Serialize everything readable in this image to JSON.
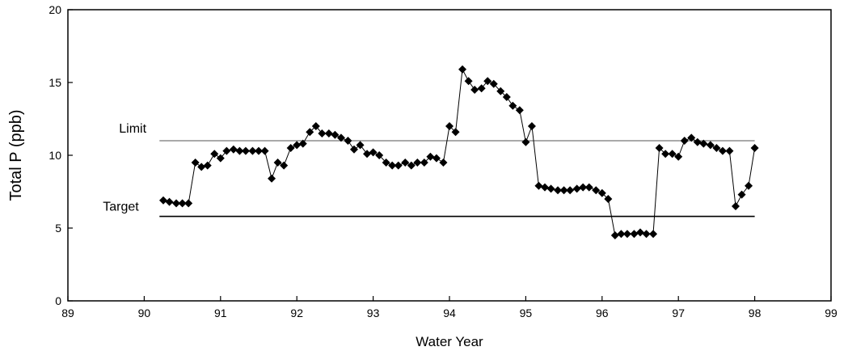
{
  "chart_data": {
    "type": "scatter",
    "title": "",
    "xlabel": "Water Year",
    "ylabel": "Total P (ppb)",
    "xlim": [
      89,
      99
    ],
    "ylim": [
      0,
      20
    ],
    "xticks": [
      "89",
      "90",
      "91",
      "92",
      "93",
      "94",
      "95",
      "96",
      "97",
      "98",
      "99"
    ],
    "yticks": [
      "0",
      "5",
      "10",
      "15",
      "20"
    ],
    "grid": false,
    "colors": {
      "series": "#000000",
      "limit": "#555555",
      "target": "#000000"
    },
    "reference_lines": [
      {
        "label": "Limit",
        "y": 11,
        "x_start": 90.2,
        "x_end": 98,
        "style": "thin-gray"
      },
      {
        "label": "Target",
        "y": 5.8,
        "x_start": 90.2,
        "x_end": 98,
        "style": "solid-black"
      }
    ],
    "series": [
      {
        "marker": "diamond",
        "x": [
          90.25,
          90.33,
          90.42,
          90.5,
          90.58,
          90.67,
          90.75,
          90.83,
          90.92,
          91.0,
          91.08,
          91.17,
          91.25,
          91.33,
          91.42,
          91.5,
          91.58,
          91.67,
          91.75,
          91.83,
          91.92,
          92.0,
          92.08,
          92.17,
          92.25,
          92.33,
          92.42,
          92.5,
          92.58,
          92.67,
          92.75,
          92.83,
          92.92,
          93.0,
          93.08,
          93.17,
          93.25,
          93.33,
          93.42,
          93.5,
          93.58,
          93.67,
          93.75,
          93.83,
          93.92,
          94.0,
          94.08,
          94.17,
          94.25,
          94.33,
          94.42,
          94.5,
          94.58,
          94.67,
          94.75,
          94.83,
          94.92,
          95.0,
          95.08,
          95.17,
          95.25,
          95.33,
          95.42,
          95.5,
          95.58,
          95.67,
          95.75,
          95.83,
          95.92,
          96.0,
          96.08,
          96.17,
          96.25,
          96.33,
          96.42,
          96.5,
          96.58,
          96.67,
          96.75,
          96.83,
          96.92,
          97.0,
          97.08,
          97.17,
          97.25,
          97.33,
          97.42,
          97.5,
          97.58,
          97.67,
          97.75,
          97.83,
          97.92,
          98.0
        ],
        "y": [
          6.9,
          6.8,
          6.7,
          6.7,
          6.7,
          9.5,
          9.2,
          9.3,
          10.1,
          9.8,
          10.3,
          10.4,
          10.3,
          10.3,
          10.3,
          10.3,
          10.3,
          8.4,
          9.5,
          9.3,
          10.5,
          10.7,
          10.8,
          11.6,
          12.0,
          11.5,
          11.5,
          11.4,
          11.2,
          11.0,
          10.4,
          10.7,
          10.1,
          10.2,
          10.0,
          9.5,
          9.3,
          9.3,
          9.5,
          9.3,
          9.5,
          9.5,
          9.9,
          9.8,
          9.5,
          12.0,
          11.6,
          15.9,
          15.1,
          14.5,
          14.6,
          15.1,
          14.9,
          14.4,
          14.0,
          13.4,
          13.1,
          10.9,
          12.0,
          7.9,
          7.8,
          7.7,
          7.6,
          7.6,
          7.6,
          7.7,
          7.8,
          7.8,
          7.6,
          7.4,
          7.0,
          4.5,
          4.6,
          4.6,
          4.6,
          4.7,
          4.6,
          4.6,
          10.5,
          10.1,
          10.1,
          9.9,
          11.0,
          11.2,
          10.9,
          10.8,
          10.7,
          10.5,
          10.3,
          10.3,
          6.5,
          7.3,
          7.9,
          10.5
        ]
      }
    ]
  }
}
